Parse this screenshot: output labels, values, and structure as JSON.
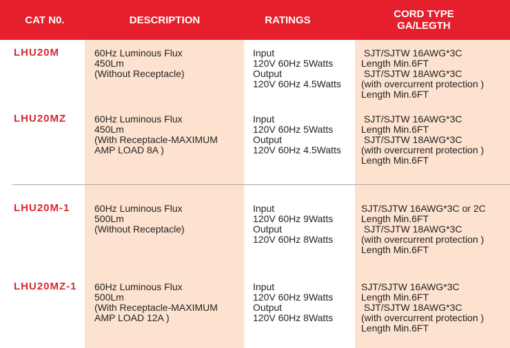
{
  "header": {
    "cat_no": "CAT  N0.",
    "description": "DESCRIPTION",
    "ratings": "RATINGS",
    "cord_type_line1": "CORD TYPE",
    "cord_type_line2": "GA/LEGTH"
  },
  "colors": {
    "header_bg": "#e51f2c",
    "cat_text": "#d9252f",
    "column_bg": "#fde3cf"
  },
  "rows": [
    {
      "cat": "LHU20M",
      "description": [
        "60Hz Luminous Flux",
        "450Lm",
        "(Without Receptacle)"
      ],
      "ratings": [
        "Input",
        "120V 60Hz 5Watts",
        "Output",
        "120V 60Hz 4.5Watts"
      ],
      "cord": [
        " SJT/SJTW 16AWG*3C",
        "Length Min.6FT",
        " SJT/SJTW 18AWG*3C",
        "(with overcurrent protection )",
        "Length Min.6FT"
      ]
    },
    {
      "cat": "LHU20MZ",
      "description": [
        "60Hz Luminous Flux",
        "450Lm",
        "(With Receptacle-MAXIMUM",
        "AMP LOAD 8A )"
      ],
      "ratings": [
        "Input",
        "120V 60Hz 5Watts",
        "Output",
        "120V 60Hz 4.5Watts"
      ],
      "cord": [
        " SJT/SJTW 16AWG*3C",
        "Length Min.6FT",
        " SJT/SJTW 18AWG*3C",
        "(with overcurrent protection )",
        "Length Min.6FT"
      ]
    },
    {
      "cat": "LHU20M-1",
      "description": [
        "60Hz Luminous Flux",
        "500Lm",
        "(Without Receptacle)"
      ],
      "ratings": [
        "Input",
        "120V 60Hz 9Watts",
        "Output",
        "120V 60Hz 8Watts"
      ],
      "cord": [
        "SJT/SJTW 16AWG*3C or 2C",
        "Length Min.6FT",
        " SJT/SJTW 18AWG*3C",
        "(with overcurrent protection )",
        "Length Min.6FT"
      ]
    },
    {
      "cat": "LHU20MZ-1",
      "description": [
        "60Hz Luminous Flux",
        "500Lm",
        "(With Receptacle-MAXIMUM",
        "AMP LOAD 12A )"
      ],
      "ratings": [
        "Input",
        "120V 60Hz 9Watts",
        "Output",
        "120V 60Hz 8Watts"
      ],
      "cord": [
        "SJT/SJTW 16AWG*3C",
        "Length Min.6FT",
        " SJT/SJTW 18AWG*3C",
        "(with overcurrent protection )",
        "Length Min.6FT"
      ]
    }
  ]
}
